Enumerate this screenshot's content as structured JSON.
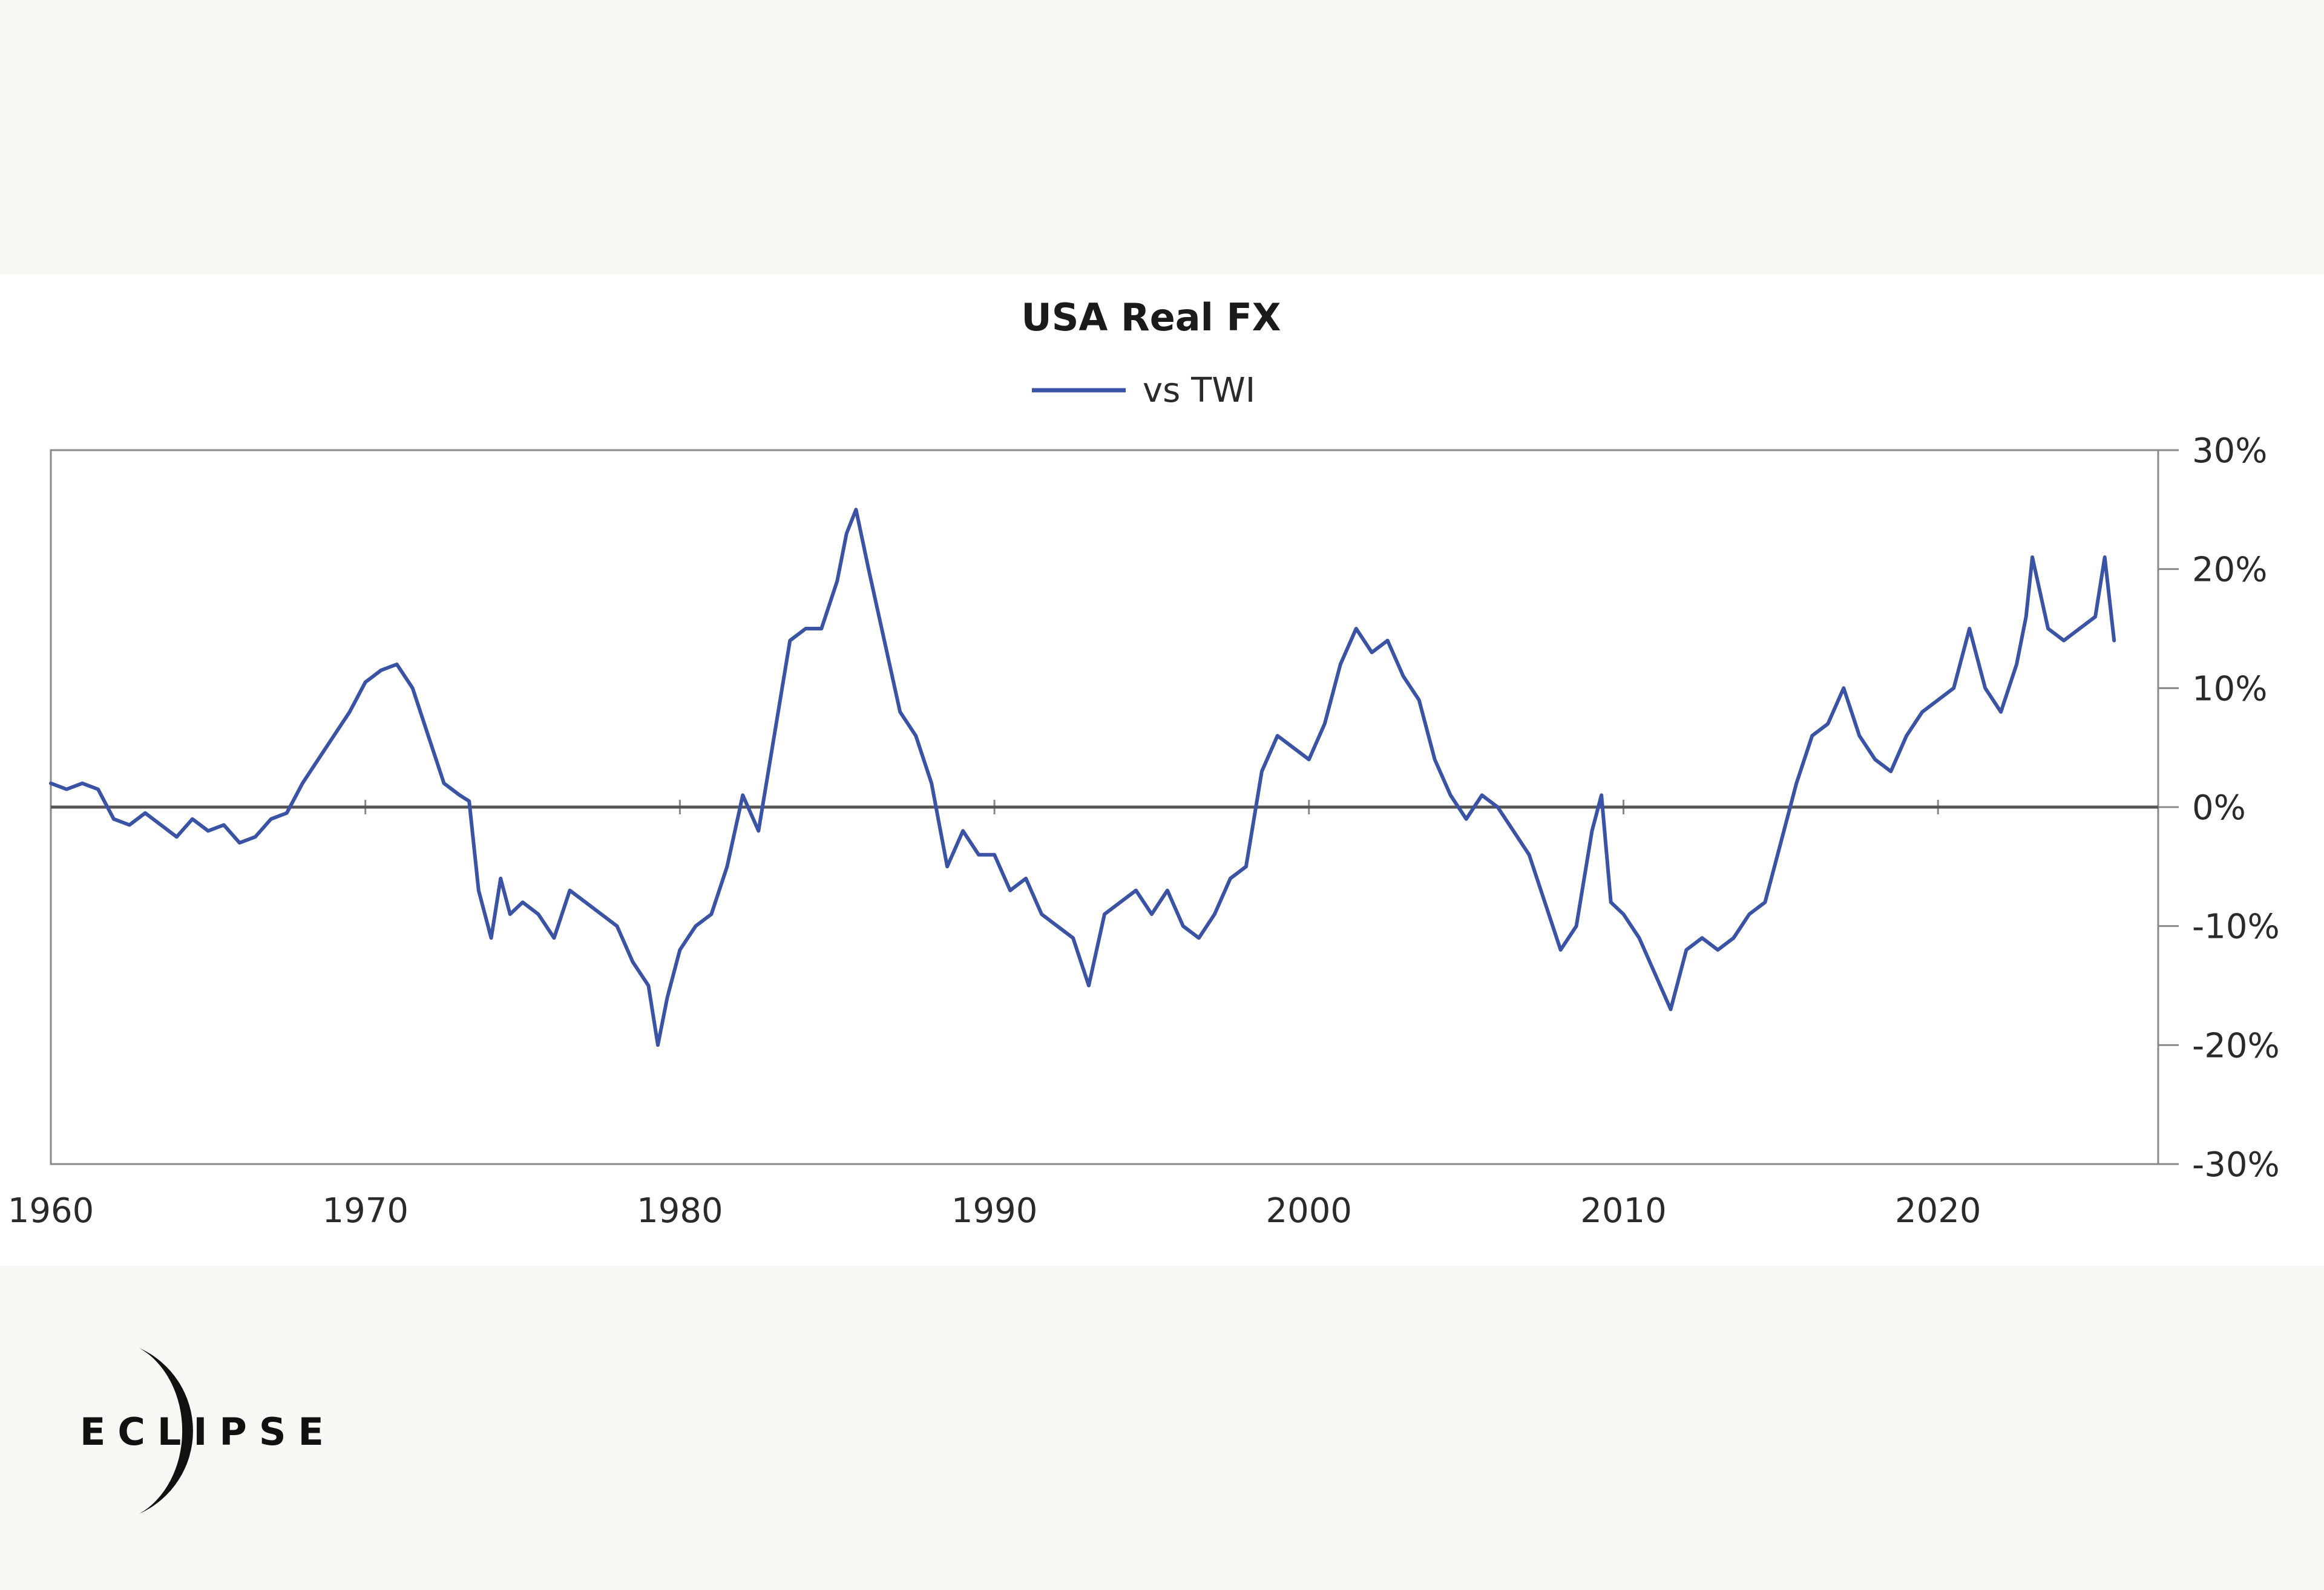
{
  "logo": {
    "text": "ECLIPSE"
  },
  "colors": {
    "line": "#3a53a4",
    "zero_line": "#555555",
    "axis": "#888888",
    "background": "#f8f7f3",
    "panel": "#ffffff"
  },
  "chart_data": {
    "type": "line",
    "title": "USA Real FX",
    "legend": [
      "vs TWI"
    ],
    "xlabel": "",
    "ylabel": "",
    "xlim": [
      1960,
      2027
    ],
    "ylim": [
      -30,
      30
    ],
    "x_ticks": [
      1960,
      1970,
      1980,
      1990,
      2000,
      2010,
      2020
    ],
    "x_tick_labels": [
      "1960",
      "1970",
      "1980",
      "1990",
      "2000",
      "2010",
      "2020"
    ],
    "y_ticks": [
      30,
      20,
      10,
      0,
      -10,
      -20,
      -30
    ],
    "y_tick_labels": [
      "30%",
      "20%",
      "10%",
      "0%",
      "-10%",
      "-20%",
      "-30%"
    ],
    "y_axis_side": "right",
    "grid": false,
    "series": [
      {
        "name": "vs TWI",
        "x": [
          1960.0,
          1960.5,
          1961.0,
          1961.5,
          1962.0,
          1962.5,
          1963.0,
          1963.5,
          1964.0,
          1964.5,
          1965.0,
          1965.5,
          1966.0,
          1966.5,
          1967.0,
          1967.5,
          1968.0,
          1968.5,
          1969.0,
          1969.5,
          1970.0,
          1970.5,
          1971.0,
          1971.5,
          1972.0,
          1972.5,
          1973.0,
          1973.3,
          1973.6,
          1974.0,
          1974.3,
          1974.6,
          1975.0,
          1975.5,
          1976.0,
          1976.5,
          1977.0,
          1977.5,
          1978.0,
          1978.5,
          1979.0,
          1979.3,
          1979.6,
          1980.0,
          1980.5,
          1981.0,
          1981.5,
          1982.0,
          1982.5,
          1983.0,
          1983.5,
          1984.0,
          1984.5,
          1985.0,
          1985.3,
          1985.6,
          1986.0,
          1986.5,
          1987.0,
          1987.5,
          1988.0,
          1988.5,
          1989.0,
          1989.5,
          1990.0,
          1990.5,
          1991.0,
          1991.5,
          1992.0,
          1992.5,
          1993.0,
          1993.5,
          1994.0,
          1994.5,
          1995.0,
          1995.5,
          1996.0,
          1996.5,
          1997.0,
          1997.5,
          1998.0,
          1998.5,
          1999.0,
          1999.5,
          2000.0,
          2000.5,
          2001.0,
          2001.5,
          2002.0,
          2002.5,
          2003.0,
          2003.5,
          2004.0,
          2004.5,
          2005.0,
          2005.5,
          2006.0,
          2006.5,
          2007.0,
          2007.5,
          2008.0,
          2008.5,
          2009.0,
          2009.3,
          2009.6,
          2010.0,
          2010.5,
          2011.0,
          2011.5,
          2012.0,
          2012.5,
          2013.0,
          2013.5,
          2014.0,
          2014.5,
          2015.0,
          2015.5,
          2016.0,
          2016.5,
          2017.0,
          2017.5,
          2018.0,
          2018.5,
          2019.0,
          2019.5,
          2020.0,
          2020.5,
          2021.0,
          2021.5,
          2022.0,
          2022.5,
          2022.8,
          2023.0,
          2023.5,
          2024.0,
          2024.5,
          2025.0,
          2025.3,
          2025.6
        ],
        "y": [
          2,
          1.5,
          2,
          1.5,
          -1,
          -1.5,
          -0.5,
          -1.5,
          -2.5,
          -1,
          -2,
          -1.5,
          -3,
          -2.5,
          -1,
          -0.5,
          2,
          4,
          6,
          8,
          10.5,
          11.5,
          12,
          10,
          6,
          2,
          1,
          0.5,
          -7,
          -11,
          -6,
          -9,
          -8,
          -9,
          -11,
          -7,
          -8,
          -9,
          -10,
          -13,
          -15,
          -20,
          -16,
          -12,
          -10,
          -9,
          -5,
          1,
          -2,
          6,
          14,
          15,
          15,
          19,
          23,
          25,
          20,
          14,
          8,
          6,
          2,
          -5,
          -2,
          -4,
          -4,
          -7,
          -6,
          -9,
          -10,
          -11,
          -15,
          -9,
          -8,
          -7,
          -9,
          -7,
          -10,
          -11,
          -9,
          -6,
          -5,
          3,
          6,
          5,
          4,
          7,
          12,
          15,
          13,
          14,
          11,
          9,
          4,
          1,
          -1,
          1,
          0,
          -2,
          -4,
          -8,
          -12,
          -10,
          -2,
          1,
          -8,
          -9,
          -11,
          -14,
          -17,
          -12,
          -11,
          -12,
          -11,
          -9,
          -8,
          -3,
          2,
          6,
          7,
          10,
          6,
          4,
          3,
          6,
          8,
          9,
          10,
          15,
          10,
          8,
          12,
          16,
          21,
          15,
          14,
          15,
          16,
          21,
          14
        ]
      }
    ]
  }
}
